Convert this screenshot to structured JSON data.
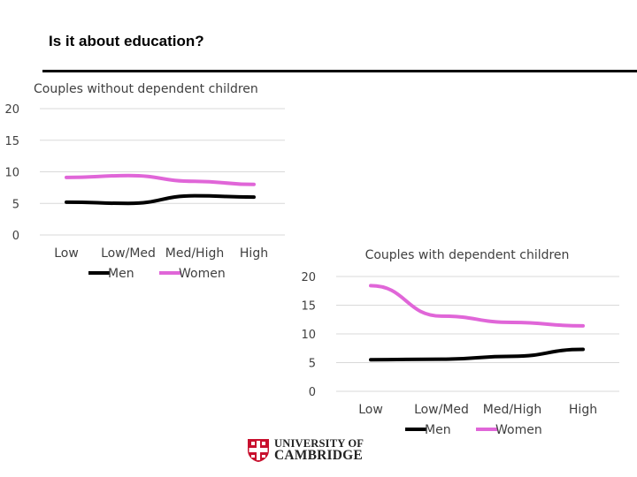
{
  "slide": {
    "title": "Is it about education?"
  },
  "logo": {
    "line1": "UNIVERSITY OF",
    "line2": "CAMBRIDGE"
  },
  "colors": {
    "men": "#000000",
    "women": "#e066d8",
    "grid": "#d9d9d9",
    "rule": "#000000",
    "shield_red": "#c8102e"
  },
  "chart_data": [
    {
      "type": "line",
      "title": "Couples without dependent children",
      "categories": [
        "Low",
        "Low/Med",
        "Med/High",
        "High"
      ],
      "series": [
        {
          "name": "Men",
          "values": [
            5.2,
            5.0,
            6.2,
            6.0
          ]
        },
        {
          "name": "Women",
          "values": [
            9.1,
            9.4,
            8.5,
            8.0
          ]
        }
      ],
      "ylim": [
        0,
        20
      ],
      "yticks": [
        "0",
        "5",
        "10",
        "15",
        "20"
      ],
      "grid": true,
      "legend": "bottom"
    },
    {
      "type": "line",
      "title": "Couples with dependent children",
      "categories": [
        "Low",
        "Low/Med",
        "Med/High",
        "High"
      ],
      "series": [
        {
          "name": "Men",
          "values": [
            5.5,
            5.6,
            6.1,
            7.3
          ]
        },
        {
          "name": "Women",
          "values": [
            18.4,
            13.1,
            12.0,
            11.4
          ]
        }
      ],
      "ylim": [
        0,
        20
      ],
      "yticks": [
        "0",
        "5",
        "10",
        "15",
        "20"
      ],
      "grid": true,
      "legend": "bottom"
    }
  ]
}
